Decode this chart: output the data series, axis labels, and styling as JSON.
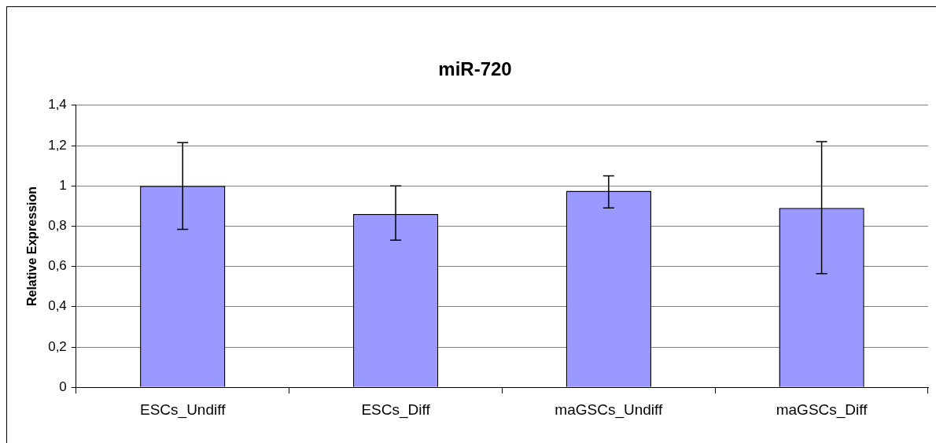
{
  "chart_data": {
    "type": "bar",
    "title": "miR-720",
    "ylabel": "Relative Expression",
    "categories": [
      "ESCs_Undiff",
      "ESCs_Diff",
      "maGSCs_Undiff",
      "maGSCs_Diff"
    ],
    "values": [
      1.0,
      0.86,
      0.975,
      0.89
    ],
    "errors": [
      [
        0.784,
        1.215
      ],
      [
        0.73,
        1.0
      ],
      [
        0.89,
        1.05
      ],
      [
        0.564,
        1.22
      ]
    ],
    "color": "#9999ff",
    "ylim": [
      0,
      1.4
    ],
    "yticks": [
      0,
      {
        "value": 0.2,
        "label": "0,2"
      },
      {
        "value": 0.4,
        "label": "0,4"
      },
      {
        "value": 0.6,
        "label": "0,6"
      },
      {
        "value": 0.8,
        "label": "0,8"
      },
      1,
      {
        "value": 1.2,
        "label": "1,2"
      },
      {
        "value": 1.4,
        "label": "1,4"
      }
    ],
    "grid": "y",
    "legend": false
  }
}
